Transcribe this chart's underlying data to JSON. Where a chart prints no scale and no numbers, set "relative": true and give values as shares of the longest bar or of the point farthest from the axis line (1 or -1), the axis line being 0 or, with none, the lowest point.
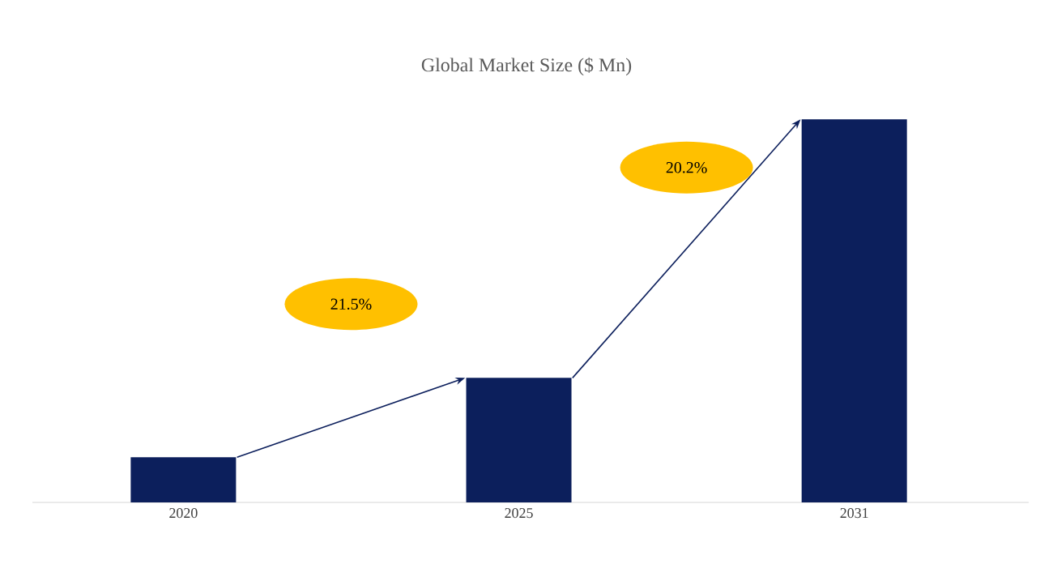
{
  "chart_data": {
    "type": "bar",
    "title": "Global Market Size ($ Mn)",
    "categories": [
      "2020",
      "2025",
      "2031"
    ],
    "values": [
      0.118,
      0.325,
      1
    ],
    "color": "#0c1f5c",
    "relative": true,
    "annotations": [
      "21.5%",
      "20.2%"
    ]
  }
}
